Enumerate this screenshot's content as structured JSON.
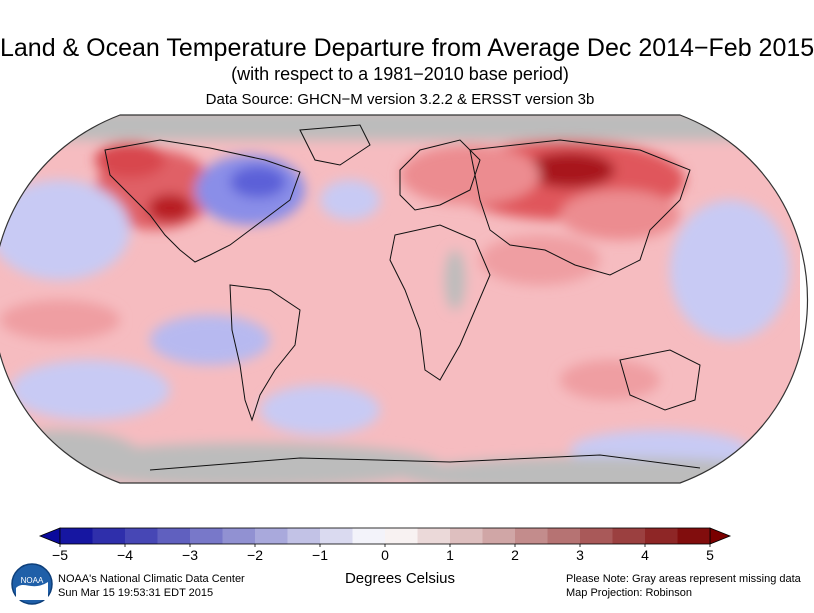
{
  "header": {
    "title": "Land & Ocean Temperature Departure from Average Dec 2014−Feb 2015",
    "subtitle": "(with respect to a 1981−2010 base period)",
    "source": "Data Source: GHCN−M version 3.2.2 & ERSST version 3b"
  },
  "legend": {
    "ticks": [
      "−5",
      "−4",
      "−3",
      "−2",
      "−1",
      "0",
      "1",
      "2",
      "3",
      "4",
      "5"
    ],
    "units": "Degrees Celsius",
    "min": -5,
    "max": 5,
    "step": 0.5,
    "colors": {
      "cold_extreme": "#0a0a9c",
      "neutral": "#ffffff",
      "warm_extreme": "#7a0000",
      "missing": "#bcbcbc"
    }
  },
  "footer": {
    "org": "NOAA's National Climatic Data Center",
    "timestamp": "Sun Mar 15 19:53:31 EDT 2015",
    "note": "Please Note: Gray areas represent missing data",
    "projection": "Map Projection: Robinson"
  },
  "logo": {
    "icon": "noaa-logo-icon",
    "text": "NOAA"
  }
}
